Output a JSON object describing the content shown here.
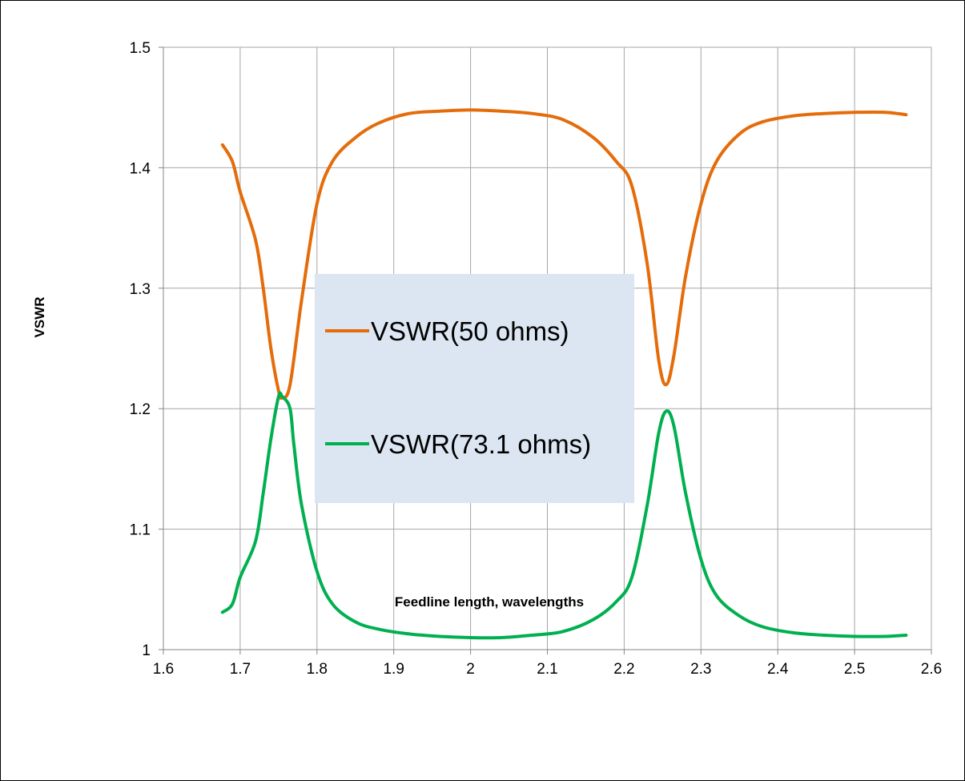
{
  "chart_data": {
    "type": "line",
    "title": "",
    "xlabel": "Feedline length, wavelengths",
    "ylabel": "VSWR",
    "xlim": [
      1.6,
      2.6
    ],
    "ylim": [
      1.0,
      1.5
    ],
    "x_ticks": [
      "1.6",
      "1.7",
      "1.8",
      "1.9",
      "2",
      "2.1",
      "2.2",
      "2.3",
      "2.4",
      "2.5",
      "2.6"
    ],
    "y_ticks": [
      "1",
      "1.1",
      "1.2",
      "1.3",
      "1.4",
      "1.5"
    ],
    "grid": true,
    "legend_position": "center-left",
    "series": [
      {
        "name": "VSWR(50 ohms)",
        "color": "#E46C0A",
        "x": [
          1.677,
          1.69,
          1.7,
          1.72,
          1.73,
          1.74,
          1.75,
          1.755,
          1.765,
          1.78,
          1.8,
          1.82,
          1.85,
          1.88,
          1.92,
          1.96,
          2.0,
          2.04,
          2.08,
          2.12,
          2.16,
          2.19,
          2.21,
          2.23,
          2.245,
          2.255,
          2.265,
          2.28,
          2.3,
          2.32,
          2.35,
          2.38,
          2.42,
          2.46,
          2.5,
          2.54,
          2.567
        ],
        "y": [
          1.419,
          1.405,
          1.38,
          1.34,
          1.3,
          1.25,
          1.215,
          1.209,
          1.22,
          1.29,
          1.37,
          1.405,
          1.425,
          1.437,
          1.445,
          1.447,
          1.448,
          1.447,
          1.445,
          1.44,
          1.425,
          1.405,
          1.385,
          1.32,
          1.24,
          1.22,
          1.245,
          1.31,
          1.37,
          1.405,
          1.428,
          1.438,
          1.443,
          1.445,
          1.446,
          1.446,
          1.444
        ]
      },
      {
        "name": "VSWR(73.1 ohms)",
        "color": "#00B050",
        "x": [
          1.677,
          1.69,
          1.7,
          1.72,
          1.73,
          1.74,
          1.75,
          1.755,
          1.765,
          1.77,
          1.78,
          1.8,
          1.82,
          1.85,
          1.88,
          1.92,
          1.96,
          2.0,
          2.04,
          2.08,
          2.12,
          2.16,
          2.19,
          2.21,
          2.23,
          2.245,
          2.255,
          2.265,
          2.28,
          2.3,
          2.32,
          2.35,
          2.38,
          2.42,
          2.46,
          2.5,
          2.54,
          2.567
        ],
        "y": [
          1.031,
          1.038,
          1.06,
          1.09,
          1.13,
          1.175,
          1.21,
          1.21,
          1.2,
          1.17,
          1.12,
          1.065,
          1.038,
          1.023,
          1.017,
          1.013,
          1.011,
          1.01,
          1.01,
          1.012,
          1.015,
          1.025,
          1.04,
          1.06,
          1.12,
          1.18,
          1.198,
          1.185,
          1.13,
          1.075,
          1.045,
          1.028,
          1.019,
          1.014,
          1.012,
          1.011,
          1.011,
          1.012
        ]
      }
    ]
  }
}
